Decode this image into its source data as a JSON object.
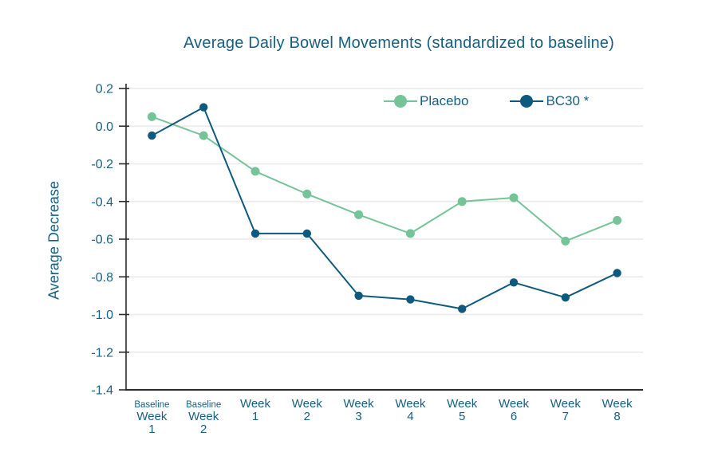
{
  "colors": {
    "text_teal": "#176084",
    "axis_line": "#2b2b2b",
    "gridline": "#ebebeb",
    "background": "#ffffff",
    "placebo_green": "#74c497",
    "bc30_teal": "#0e5a7e"
  },
  "chart_data": {
    "type": "line",
    "title": "Average Daily Bowel Movements (standardized to baseline)",
    "ylabel": "Average Decrease",
    "xlabel": "",
    "ylim": [
      -1.4,
      0.2
    ],
    "ytick_step": 0.2,
    "ytick_labels": [
      "0.2",
      "0.0",
      "-0.2",
      "-0.4",
      "-0.6",
      "-0.8",
      "-1.0",
      "-1.2",
      "-1.4"
    ],
    "grid": "horizontal",
    "legend_position": "top-inside",
    "categories": [
      "Baseline Week 1",
      "Baseline Week 2",
      "Week 1",
      "Week 2",
      "Week 3",
      "Week 4",
      "Week 5",
      "Week 6",
      "Week 7",
      "Week 8"
    ],
    "category_label_lines": [
      [
        "Baseline",
        "Week",
        "1"
      ],
      [
        "Baseline",
        "Week",
        "2"
      ],
      [
        "Week",
        "1"
      ],
      [
        "Week",
        "2"
      ],
      [
        "Week",
        "3"
      ],
      [
        "Week",
        "4"
      ],
      [
        "Week",
        "5"
      ],
      [
        "Week",
        "6"
      ],
      [
        "Week",
        "7"
      ],
      [
        "Week",
        "8"
      ]
    ],
    "series": [
      {
        "name": "Placebo",
        "color": "#74c497",
        "values": [
          0.05,
          -0.05,
          -0.24,
          -0.36,
          -0.47,
          -0.57,
          -0.4,
          -0.38,
          -0.61,
          -0.5
        ]
      },
      {
        "name": "BC30 *",
        "color": "#0e5a7e",
        "values": [
          -0.05,
          0.1,
          -0.57,
          -0.57,
          -0.9,
          -0.92,
          -0.97,
          -0.83,
          -0.91,
          -0.78
        ]
      }
    ]
  }
}
